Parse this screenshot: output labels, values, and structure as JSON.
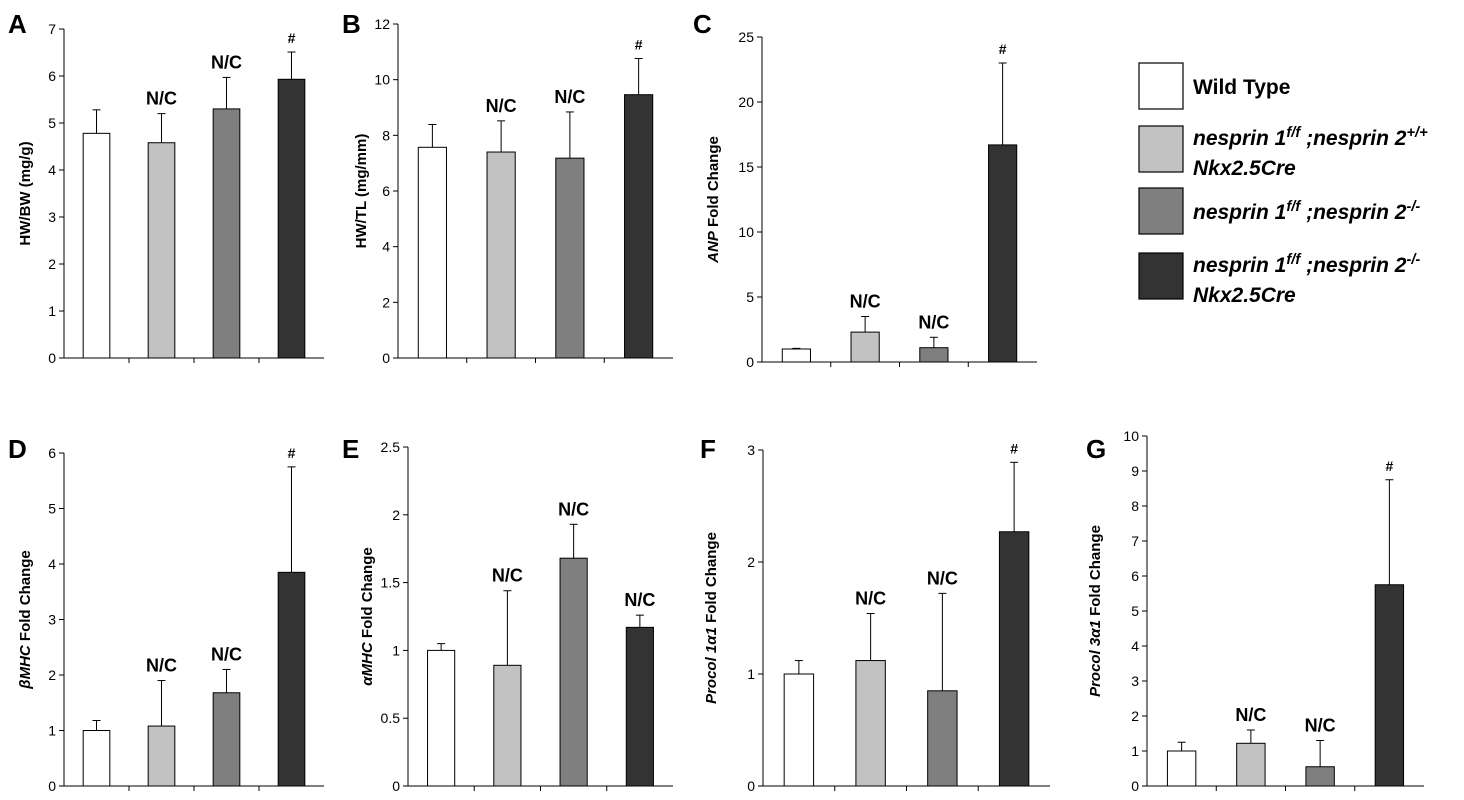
{
  "legend": {
    "entries": [
      {
        "color": "#ffffff",
        "lines": [
          [
            {
              "t": "Wild Type",
              "i": false
            }
          ]
        ]
      },
      {
        "color": "#c2c2c2",
        "lines": [
          [
            {
              "t": "nesprin 1",
              "i": true
            },
            {
              "t": "f/f",
              "i": true,
              "sup": true
            },
            {
              "t": " ;nesprin 2",
              "i": true
            },
            {
              "t": "+/+",
              "i": true,
              "sup": true
            }
          ],
          [
            {
              "t": "Nkx2.5Cre",
              "i": true
            }
          ]
        ]
      },
      {
        "color": "#7f7f7f",
        "lines": [
          [
            {
              "t": "nesprin 1",
              "i": true
            },
            {
              "t": "f/f",
              "i": true,
              "sup": true
            },
            {
              "t": " ;nesprin 2",
              "i": true
            },
            {
              "t": "-/-",
              "i": true,
              "sup": true
            }
          ]
        ]
      },
      {
        "color": "#333333",
        "lines": [
          [
            {
              "t": "nesprin 1",
              "i": true
            },
            {
              "t": "f/f",
              "i": true,
              "sup": true
            },
            {
              "t": " ;nesprin 2",
              "i": true
            },
            {
              "t": "-/-",
              "i": true,
              "sup": true
            }
          ],
          [
            {
              "t": "Nkx2.5Cre",
              "i": true
            }
          ]
        ]
      }
    ]
  },
  "chart_data": [
    {
      "panel": "A",
      "type": "bar",
      "ylabel": [
        {
          "t": "HW/BW (mg/g)",
          "i": false
        }
      ],
      "ylim": [
        0,
        7
      ],
      "yticks": [
        0,
        1,
        2,
        3,
        4,
        5,
        6,
        7
      ],
      "values": [
        4.78,
        4.58,
        5.3,
        5.93
      ],
      "errors": [
        0.5,
        0.62,
        0.67,
        0.58
      ],
      "annotations": [
        "",
        "N/C",
        "N/C",
        "#"
      ]
    },
    {
      "panel": "B",
      "type": "bar",
      "ylabel": [
        {
          "t": "HW/TL (mg/mm)",
          "i": false
        }
      ],
      "ylim": [
        0,
        12
      ],
      "yticks": [
        0,
        2,
        4,
        6,
        8,
        10,
        12
      ],
      "values": [
        7.57,
        7.4,
        7.18,
        9.46
      ],
      "errors": [
        0.82,
        1.12,
        1.66,
        1.3
      ],
      "annotations": [
        "",
        "N/C",
        "N/C",
        "#"
      ]
    },
    {
      "panel": "C",
      "type": "bar",
      "ylabel": [
        {
          "t": "ANP",
          "i": true
        },
        {
          "t": " Fold Change",
          "i": false
        }
      ],
      "ylim": [
        0,
        25
      ],
      "yticks": [
        0,
        5,
        10,
        15,
        20,
        25
      ],
      "values": [
        1.0,
        2.3,
        1.1,
        16.7
      ],
      "errors": [
        0.05,
        1.2,
        0.8,
        6.3
      ],
      "annotations": [
        "",
        "N/C",
        "N/C",
        "#"
      ]
    },
    {
      "panel": "D",
      "type": "bar",
      "ylabel": [
        {
          "t": "βMHC",
          "i": true
        },
        {
          "t": " Fold Change",
          "i": false
        }
      ],
      "ylim": [
        0,
        6
      ],
      "yticks": [
        0,
        1,
        2,
        3,
        4,
        5,
        6
      ],
      "values": [
        1.0,
        1.08,
        1.68,
        3.85
      ],
      "errors": [
        0.18,
        0.82,
        0.42,
        1.9
      ],
      "annotations": [
        "",
        "N/C",
        "N/C",
        "#"
      ]
    },
    {
      "panel": "E",
      "type": "bar",
      "ylabel": [
        {
          "t": "αMHC",
          "i": true
        },
        {
          "t": " Fold Change",
          "i": false
        }
      ],
      "ylim": [
        0,
        2.5
      ],
      "yticks": [
        "0",
        "0.5",
        "1",
        "1.5",
        "2",
        "2.5"
      ],
      "values": [
        1.0,
        0.89,
        1.68,
        1.17
      ],
      "errors": [
        0.05,
        0.55,
        0.25,
        0.09
      ],
      "annotations": [
        "",
        "N/C",
        "N/C",
        "N/C"
      ]
    },
    {
      "panel": "F",
      "type": "bar",
      "ylabel": [
        {
          "t": "Procol 1α1",
          "i": true
        },
        {
          "t": " Fold Change",
          "i": false
        }
      ],
      "ylim": [
        0,
        3
      ],
      "yticks": [
        0,
        1,
        2,
        3
      ],
      "values": [
        1.0,
        1.12,
        0.85,
        2.27
      ],
      "errors": [
        0.12,
        0.42,
        0.87,
        0.62
      ],
      "annotations": [
        "",
        "N/C",
        "N/C",
        "#"
      ]
    },
    {
      "panel": "G",
      "type": "bar",
      "ylabel": [
        {
          "t": "Procol 3α1",
          "i": true
        },
        {
          "t": " Fold Change",
          "i": false
        }
      ],
      "ylim": [
        0,
        10
      ],
      "yticks": [
        0,
        1,
        2,
        3,
        4,
        5,
        6,
        7,
        8,
        9,
        10
      ],
      "values": [
        1.0,
        1.22,
        0.55,
        5.75
      ],
      "errors": [
        0.25,
        0.38,
        0.75,
        3.0
      ],
      "annotations": [
        "",
        "N/C",
        "N/C",
        "#"
      ]
    }
  ]
}
